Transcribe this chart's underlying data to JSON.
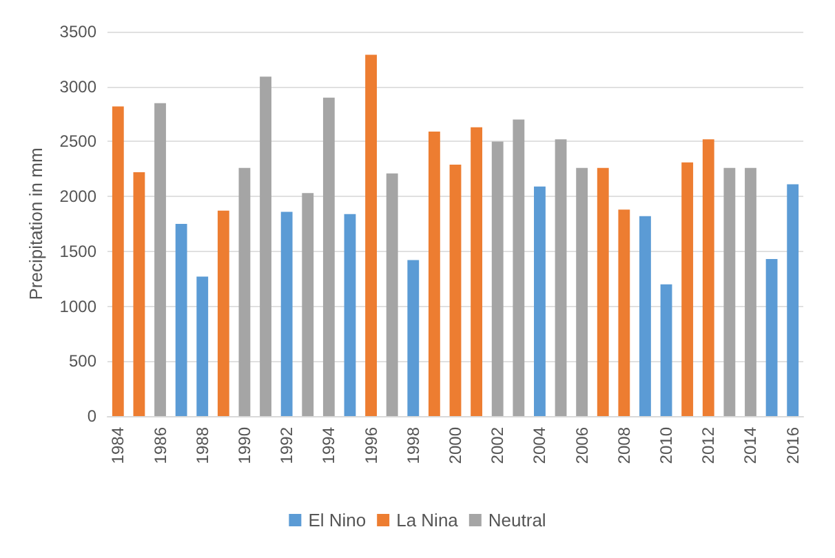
{
  "chart_data": {
    "type": "bar",
    "stacked": true,
    "ylabel": "Precipitation in mm",
    "categories": [
      "1984",
      null,
      "1986",
      null,
      "1988",
      null,
      "1990",
      null,
      "1992",
      null,
      "1994",
      null,
      "1996",
      null,
      "1998",
      null,
      "2000",
      null,
      "2002",
      null,
      "2004",
      null,
      "2006",
      null,
      "2008",
      null,
      "2010",
      null,
      "2012",
      null,
      "2014",
      null,
      "2016"
    ],
    "series": [
      {
        "name": "El Nino",
        "color": "#5b9bd5",
        "values": [
          null,
          null,
          null,
          1750,
          1270,
          null,
          null,
          null,
          1860,
          null,
          null,
          1840,
          null,
          null,
          1420,
          null,
          null,
          null,
          null,
          null,
          2090,
          null,
          null,
          null,
          null,
          1820,
          1200,
          null,
          null,
          null,
          null,
          1430,
          2110
        ]
      },
      {
        "name": "La Nina",
        "color": "#ed7d31",
        "values": [
          2820,
          2220,
          null,
          null,
          null,
          1870,
          null,
          null,
          null,
          null,
          null,
          null,
          3290,
          null,
          null,
          2590,
          2290,
          2630,
          null,
          null,
          null,
          null,
          null,
          2260,
          1880,
          null,
          null,
          2310,
          2520,
          null,
          null,
          null,
          null
        ]
      },
      {
        "name": "Neutral",
        "color": "#a5a5a5",
        "values": [
          null,
          null,
          2850,
          null,
          null,
          null,
          2260,
          3090,
          null,
          2030,
          2900,
          null,
          null,
          2210,
          null,
          null,
          null,
          null,
          2500,
          2700,
          null,
          2520,
          2260,
          null,
          null,
          null,
          null,
          null,
          null,
          2260,
          2260,
          null,
          null
        ]
      }
    ],
    "ylim": [
      0,
      3500
    ],
    "yticks": [
      0,
      500,
      1000,
      1500,
      2000,
      2500,
      3000,
      3500
    ],
    "grid": "y",
    "legend": "bottom"
  }
}
